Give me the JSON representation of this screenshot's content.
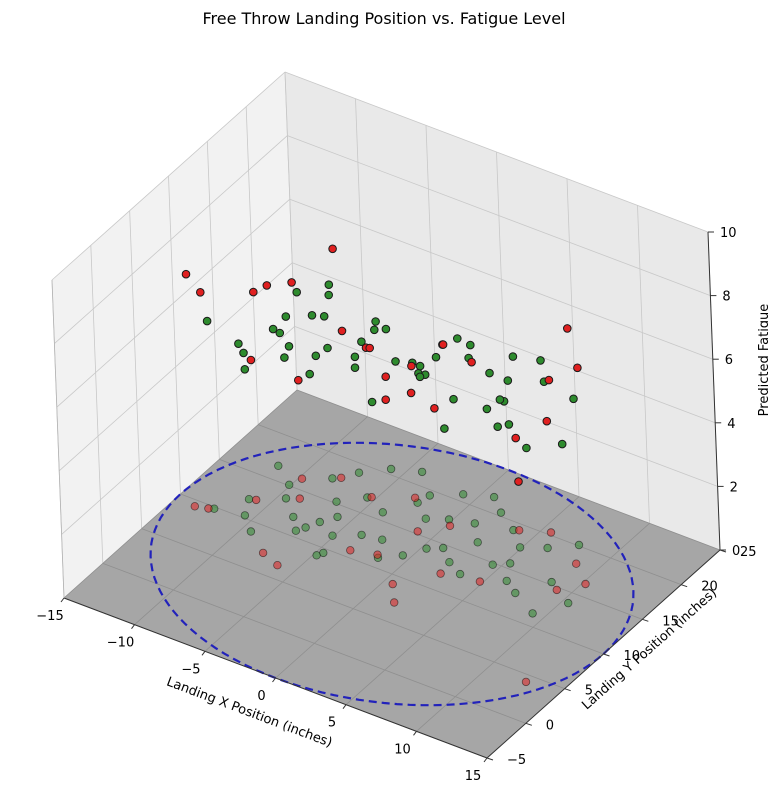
{
  "chart_data": {
    "type": "scatter",
    "title": "Free Throw Landing Position vs. Fatigue Level",
    "xlabel": "Landing X Position (inches)",
    "ylabel": "Landing Y Position (inches)",
    "zlabel": "Predicted Fatigue",
    "xlim": [
      -15,
      15
    ],
    "ylim": [
      -5,
      25
    ],
    "zlim": [
      0,
      10
    ],
    "x_ticks": [
      "−15",
      "−10",
      "−5",
      "0",
      "5",
      "10",
      "15"
    ],
    "y_ticks": [
      "−5",
      "0",
      "5",
      "10",
      "15",
      "20",
      "25"
    ],
    "z_ticks": [
      "0",
      "2",
      "4",
      "6",
      "8",
      "10"
    ],
    "grid": true,
    "floor_plane_color": "#a6a6a6",
    "target_circle": {
      "center_x": 0,
      "center_y": 10,
      "radius": 15,
      "color": "#2222bb",
      "style": "dashed"
    },
    "series": [
      {
        "color": "#2e8b2e",
        "points": [
          [
            -12.5,
            9.8,
            5.9
          ],
          [
            -11.3,
            12.1,
            4.6
          ],
          [
            -10.6,
            10.3,
            5.4
          ],
          [
            -9.4,
            8.9,
            5.1
          ],
          [
            -8.1,
            12.0,
            6.3
          ],
          [
            -7.2,
            10.7,
            5.8
          ],
          [
            -6.5,
            12.5,
            6.5
          ],
          [
            -5.9,
            13.7,
            7.3
          ],
          [
            -5.1,
            11.6,
            6.9
          ],
          [
            -4.6,
            9.5,
            6.2
          ],
          [
            -3.7,
            12.8,
            5.6
          ],
          [
            -2.4,
            13.1,
            6.6
          ],
          [
            -1.6,
            11.1,
            4.9
          ],
          [
            -0.5,
            12.3,
            6.1
          ],
          [
            0.3,
            13.9,
            5.4
          ],
          [
            1.1,
            14.6,
            6.0
          ],
          [
            2.2,
            13.4,
            4.2
          ],
          [
            3.4,
            12.6,
            5.5
          ],
          [
            4.5,
            14.8,
            4.9
          ],
          [
            5.3,
            15.6,
            5.1
          ],
          [
            6.1,
            13.7,
            5.7
          ],
          [
            7.2,
            12.8,
            5.3
          ],
          [
            8.4,
            15.3,
            6.3
          ],
          [
            9.2,
            11.4,
            5.2
          ],
          [
            10.4,
            13.8,
            5.0
          ],
          [
            -10.1,
            15.1,
            4.0
          ],
          [
            -8.3,
            17.4,
            4.1
          ],
          [
            -6.8,
            15.2,
            6.5
          ],
          [
            -5.5,
            16.8,
            4.9
          ],
          [
            -3.9,
            15.9,
            6.0
          ],
          [
            -2.7,
            18.2,
            4.4
          ],
          [
            -1.4,
            16.9,
            4.8
          ],
          [
            -0.2,
            17.7,
            5.5
          ],
          [
            1.3,
            18.3,
            5.2
          ],
          [
            2.5,
            16.5,
            6.2
          ],
          [
            3.6,
            19.1,
            4.7
          ],
          [
            4.9,
            17.6,
            6.0
          ],
          [
            6.3,
            18.6,
            5.9
          ],
          [
            7.7,
            20.1,
            4.6
          ],
          [
            -7.3,
            19.0,
            3.3
          ],
          [
            -5.9,
            20.6,
            4.4
          ],
          [
            -4.2,
            21.5,
            3.1
          ],
          [
            -2.5,
            19.4,
            3.8
          ],
          [
            -0.9,
            20.8,
            4.9
          ],
          [
            0.8,
            21.7,
            3.9
          ],
          [
            2.0,
            20.4,
            2.7
          ],
          [
            -11.7,
            16.6,
            4.3
          ],
          [
            -9.5,
            13.6,
            5.2
          ],
          [
            -6.9,
            11.4,
            7.4
          ],
          [
            -4.8,
            9.0,
            5.7
          ]
        ]
      },
      {
        "color": "#e02020",
        "points": [
          [
            -13.6,
            9.3,
            7.3
          ],
          [
            -12.8,
            9.6,
            6.8
          ],
          [
            -10.9,
            12.3,
            4.4
          ],
          [
            -8.8,
            14.1,
            6.8
          ],
          [
            -7.6,
            7.2,
            8.2
          ],
          [
            -6.2,
            6.5,
            8.8
          ],
          [
            -3.4,
            10.8,
            6.9
          ],
          [
            -1.8,
            11.4,
            6.5
          ],
          [
            0.6,
            9.0,
            5.8
          ],
          [
            2.4,
            11.9,
            5.2
          ],
          [
            4.8,
            12.6,
            6.9
          ],
          [
            9.1,
            14.7,
            6.6
          ],
          [
            10.2,
            16.4,
            6.8
          ],
          [
            12.7,
            4.2,
            6.3
          ],
          [
            -9.8,
            16.2,
            3.1
          ],
          [
            -5.3,
            17.0,
            4.7
          ],
          [
            -3.1,
            18.6,
            3.3
          ],
          [
            -1.1,
            15.3,
            5.2
          ],
          [
            0.2,
            17.1,
            5.7
          ],
          [
            3.9,
            19.3,
            2.9
          ],
          [
            5.6,
            20.3,
            3.5
          ],
          [
            -7.9,
            17.8,
            7.2
          ],
          [
            8.6,
            18.1,
            7.4
          ],
          [
            1.7,
            7.2,
            7.1
          ]
        ]
      }
    ]
  }
}
